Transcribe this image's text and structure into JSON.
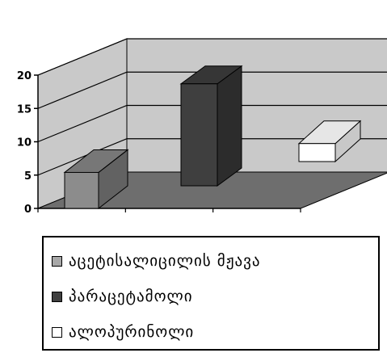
{
  "chart_data": {
    "type": "bar",
    "categories": [
      "აცეტისალიცილის მჟავა",
      "პარაცეტამოლი",
      "ალოპურინოლი"
    ],
    "values": [
      6,
      17,
      3
    ],
    "ylim": [
      0,
      20
    ],
    "yticks": [
      0,
      5,
      10,
      15,
      20
    ],
    "title": "",
    "xlabel": "",
    "ylabel": "",
    "grid": true,
    "legend_position": "bottom",
    "series": [
      {
        "name": "აცეტისალიცილის მჟავა",
        "value": 6,
        "color": "#8c8c8c",
        "legend_color": "#a8a8a8"
      },
      {
        "name": "პარაცეტამოლი",
        "value": 17,
        "color": "#3f3f3f",
        "legend_color": "#3f3f3f"
      },
      {
        "name": "ალოპურინოლი",
        "value": 3,
        "color": "#ffffff",
        "legend_color": "#ffffff"
      }
    ]
  },
  "colors": {
    "back_wall": "#c9c9c9",
    "floor": "#6e6e6e",
    "grid": "#000000"
  }
}
